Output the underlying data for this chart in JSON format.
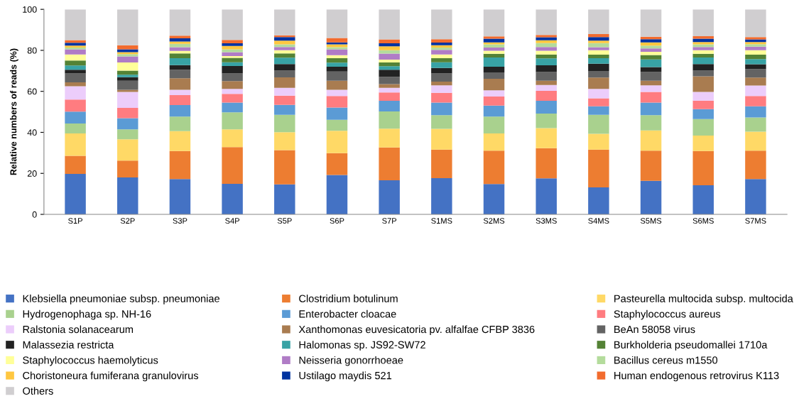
{
  "chart_data": {
    "type": "bar",
    "stacked": true,
    "ylabel": "Relative numbers of reads (%)",
    "categories": [
      "S1P",
      "S2P",
      "S3P",
      "S4P",
      "S5P",
      "S6P",
      "S7P",
      "S1MS",
      "S2MS",
      "S3MS",
      "S4MS",
      "S5MS",
      "S6MS",
      "S7MS"
    ],
    "ylim": [
      0,
      100
    ],
    "yticks": [
      0,
      20,
      40,
      60,
      80,
      100
    ],
    "grid": false,
    "legend": "bottom",
    "series": [
      {
        "name": "Klebsiella pneumoniae subsp. pneumoniae",
        "color": "#4472c4",
        "values": [
          19.7,
          18.0,
          17.2,
          14.9,
          14.6,
          19.2,
          16.6,
          17.7,
          14.8,
          17.6,
          13.2,
          16.4,
          14.2,
          17.2
        ]
      },
      {
        "name": "Clostridium botulinum",
        "color": "#ed7d31",
        "values": [
          8.9,
          8.2,
          13.7,
          17.9,
          16.7,
          10.7,
          16.0,
          13.9,
          16.3,
          14.7,
          18.4,
          14.7,
          16.7,
          13.9
        ]
      },
      {
        "name": "Pasteurella multocida subsp. multocida",
        "color": "#ffd966",
        "values": [
          10.9,
          10.4,
          9.7,
          8.7,
          8.8,
          10.9,
          9.2,
          10.1,
          8.4,
          9.8,
          7.7,
          9.8,
          7.5,
          9.2
        ]
      },
      {
        "name": "Hydrogenophaga sp. NH-16",
        "color": "#a9d18e",
        "values": [
          4.8,
          4.9,
          7.1,
          8.3,
          8.5,
          5.3,
          8.4,
          6.7,
          8.2,
          7.1,
          9.3,
          7.5,
          8.1,
          7.0
        ]
      },
      {
        "name": "Enterobacter cloacae",
        "color": "#5b9bd5",
        "values": [
          5.8,
          5.4,
          5.6,
          4.7,
          4.8,
          6.0,
          5.2,
          6.1,
          5.4,
          6.2,
          4.1,
          6.1,
          4.8,
          5.4
        ]
      },
      {
        "name": "Staphylococcus aureus",
        "color": "#ff7c80",
        "values": [
          5.9,
          5.0,
          4.9,
          4.3,
          4.5,
          5.6,
          4.1,
          4.8,
          4.4,
          4.8,
          3.9,
          5.2,
          4.2,
          5.0
        ]
      },
      {
        "name": "Ralstonia solanacearum",
        "color": "#eccdfb",
        "values": [
          6.5,
          7.8,
          2.6,
          2.4,
          3.8,
          3.1,
          2.2,
          3.6,
          3.0,
          2.9,
          4.6,
          3.2,
          4.2,
          5.1
        ]
      },
      {
        "name": "Xanthomonas euvesicatoria pv. alfalfae CFBP 3836",
        "color": "#a97c50",
        "values": [
          1.9,
          1.1,
          5.6,
          3.8,
          5.1,
          4.4,
          1.8,
          1.8,
          5.6,
          2.1,
          5.5,
          2.3,
          7.6,
          3.9
        ]
      },
      {
        "name": "BeAn 58058 virus",
        "color": "#636363",
        "values": [
          4.3,
          4.4,
          4.1,
          3.7,
          3.3,
          4.5,
          3.6,
          4.0,
          3.1,
          4.2,
          3.2,
          4.2,
          2.8,
          4.2
        ]
      },
      {
        "name": "Malassezia restricta",
        "color": "#222222",
        "values": [
          1.8,
          1.7,
          2.3,
          3.7,
          3.2,
          2.3,
          3.4,
          2.7,
          2.8,
          3.3,
          3.6,
          2.4,
          3.2,
          2.3
        ]
      },
      {
        "name": "Halomonas sp. JS92-SW72",
        "color": "#38a3a5",
        "values": [
          2.1,
          1.2,
          3.4,
          1.8,
          3.1,
          2.0,
          1.8,
          2.8,
          4.5,
          3.4,
          2.7,
          3.8,
          3.2,
          2.5
        ]
      },
      {
        "name": "Burkholderia pseudomallei 1710a",
        "color": "#548235",
        "values": [
          2.4,
          2.0,
          2.3,
          2.1,
          2.1,
          2.2,
          1.8,
          2.0,
          1.8,
          1.9,
          1.7,
          2.1,
          1.8,
          2.2
        ]
      },
      {
        "name": "Staphylococcus haemolyticus",
        "color": "#ffff99",
        "values": [
          3.0,
          4.0,
          1.2,
          0.9,
          1.6,
          1.4,
          1.4,
          1.8,
          1.5,
          1.8,
          2.2,
          1.6,
          1.8,
          2.2
        ]
      },
      {
        "name": "Neisseria gonorrhoeae",
        "color": "#b07cc6",
        "values": [
          2.5,
          2.9,
          1.8,
          1.9,
          1.5,
          2.9,
          2.9,
          2.2,
          1.6,
          1.8,
          1.4,
          1.6,
          1.5,
          1.7
        ]
      },
      {
        "name": "Bacillus cereus m1550",
        "color": "#b4dc9c",
        "values": [
          0.9,
          1.2,
          1.7,
          1.4,
          1.3,
          1.0,
          1.7,
          1.2,
          1.5,
          1.9,
          2.0,
          1.4,
          1.3,
          1.2
        ]
      },
      {
        "name": "Choristoneura fumiferana granulovirus",
        "color": "#ffc740",
        "values": [
          0.9,
          0.9,
          1.1,
          1.6,
          1.8,
          1.4,
          1.9,
          1.1,
          1.0,
          1.4,
          1.2,
          1.6,
          1.1,
          1.0
        ]
      },
      {
        "name": "Ustilago maydis 521",
        "color": "#0033a0",
        "values": [
          1.4,
          1.4,
          1.6,
          1.3,
          1.8,
          1.0,
          1.4,
          1.3,
          1.8,
          1.5,
          1.8,
          1.5,
          1.7,
          1.3
        ]
      },
      {
        "name": "Human endogenous retrovirus K113",
        "color": "#f26b2e",
        "values": [
          1.3,
          2.0,
          1.3,
          1.7,
          0.8,
          2.1,
          1.9,
          1.6,
          1.1,
          1.1,
          1.4,
          1.2,
          1.2,
          1.2
        ]
      },
      {
        "name": "Others",
        "color": "#d0ced0",
        "values": [
          15.0,
          17.5,
          12.8,
          14.9,
          12.7,
          14.0,
          14.7,
          14.6,
          13.2,
          12.5,
          12.1,
          13.4,
          13.1,
          13.5
        ]
      }
    ]
  }
}
